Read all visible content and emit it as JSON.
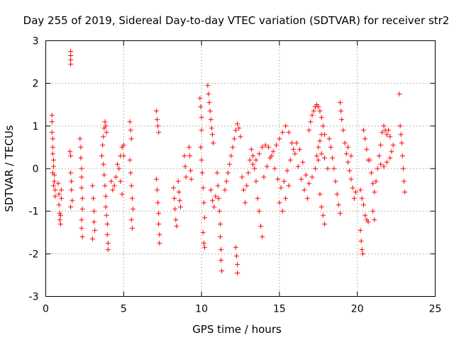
{
  "chart_data": {
    "type": "scatter",
    "title": "Day 255 of 2019, Sidereal Day-to-day VTEC variation (SDTVAR) for receiver str2",
    "xlabel": "GPS time / hours",
    "ylabel": "SDTVAR / TECUs",
    "xlim": [
      0,
      25
    ],
    "ylim": [
      -3,
      3
    ],
    "x_ticks": [
      "0",
      "5",
      "10",
      "15",
      "20",
      "25"
    ],
    "y_ticks": [
      "-3",
      "-2",
      "-1",
      "0",
      "1",
      "2",
      "3"
    ],
    "grid": true,
    "marker": "plus",
    "color": "#ff0000",
    "series": [
      {
        "name": "SDTVAR",
        "points": [
          [
            0.4,
            1.25
          ],
          [
            0.4,
            1.1
          ],
          [
            0.4,
            0.85
          ],
          [
            0.45,
            0.7
          ],
          [
            0.45,
            0.5
          ],
          [
            0.45,
            0.35
          ],
          [
            0.5,
            0.2
          ],
          [
            0.5,
            0.05
          ],
          [
            0.55,
            -0.15
          ],
          [
            0.55,
            -0.3
          ],
          [
            0.6,
            -0.5
          ],
          [
            0.6,
            -0.65
          ],
          [
            0.5,
            -0.4
          ],
          [
            0.45,
            -0.1
          ],
          [
            0.8,
            -0.35
          ],
          [
            0.85,
            -0.6
          ],
          [
            0.85,
            -0.85
          ],
          [
            0.9,
            -1.05
          ],
          [
            0.9,
            -1.2
          ],
          [
            0.95,
            -1.3
          ],
          [
            0.95,
            -1.1
          ],
          [
            1.0,
            -0.7
          ],
          [
            1.0,
            -0.5
          ],
          [
            1.6,
            2.75
          ],
          [
            1.6,
            2.65
          ],
          [
            1.6,
            2.55
          ],
          [
            1.6,
            2.45
          ],
          [
            1.55,
            0.4
          ],
          [
            1.6,
            0.3
          ],
          [
            1.6,
            -0.1
          ],
          [
            1.65,
            -0.3
          ],
          [
            1.65,
            -0.5
          ],
          [
            1.7,
            -0.75
          ],
          [
            1.6,
            -0.9
          ],
          [
            2.2,
            0.7
          ],
          [
            2.25,
            0.5
          ],
          [
            2.25,
            0.25
          ],
          [
            2.3,
            0.0
          ],
          [
            2.3,
            -0.2
          ],
          [
            2.3,
            -0.45
          ],
          [
            2.35,
            -0.7
          ],
          [
            2.35,
            -0.95
          ],
          [
            2.3,
            -1.2
          ],
          [
            2.3,
            -1.4
          ],
          [
            2.35,
            -1.6
          ],
          [
            3.0,
            -0.4
          ],
          [
            3.05,
            -0.7
          ],
          [
            3.1,
            -1.0
          ],
          [
            3.1,
            -1.25
          ],
          [
            3.15,
            -1.45
          ],
          [
            3.0,
            -1.65
          ],
          [
            3.6,
            0.3
          ],
          [
            3.65,
            0.55
          ],
          [
            3.7,
            0.75
          ],
          [
            3.75,
            0.95
          ],
          [
            3.8,
            1.1
          ],
          [
            3.85,
            1.0
          ],
          [
            3.9,
            0.85
          ],
          [
            3.7,
            0.1
          ],
          [
            3.75,
            -0.15
          ],
          [
            3.8,
            -0.4
          ],
          [
            3.85,
            -0.65
          ],
          [
            3.85,
            -0.9
          ],
          [
            3.9,
            -1.1
          ],
          [
            3.95,
            -1.3
          ],
          [
            3.95,
            -1.55
          ],
          [
            4.0,
            -1.75
          ],
          [
            4.0,
            -1.9
          ],
          [
            4.2,
            -0.3
          ],
          [
            4.3,
            -0.5
          ],
          [
            4.4,
            -0.4
          ],
          [
            4.5,
            -0.2
          ],
          [
            4.6,
            0.1
          ],
          [
            4.7,
            0.0
          ],
          [
            4.8,
            -0.3
          ],
          [
            4.9,
            -0.6
          ],
          [
            4.8,
            0.3
          ],
          [
            4.9,
            0.5
          ],
          [
            5.0,
            0.55
          ],
          [
            5.0,
            0.3
          ],
          [
            5.4,
            1.1
          ],
          [
            5.45,
            0.9
          ],
          [
            5.5,
            0.7
          ],
          [
            5.4,
            0.2
          ],
          [
            5.45,
            -0.1
          ],
          [
            5.5,
            -0.4
          ],
          [
            5.55,
            -0.7
          ],
          [
            5.6,
            -0.95
          ],
          [
            5.5,
            -1.2
          ],
          [
            5.55,
            -1.4
          ],
          [
            7.1,
            1.35
          ],
          [
            7.15,
            1.15
          ],
          [
            7.2,
            1.0
          ],
          [
            7.25,
            0.85
          ],
          [
            7.1,
            -0.25
          ],
          [
            7.15,
            -0.5
          ],
          [
            7.2,
            -0.8
          ],
          [
            7.25,
            -1.05
          ],
          [
            7.25,
            -1.3
          ],
          [
            7.3,
            -1.55
          ],
          [
            7.3,
            -1.75
          ],
          [
            8.2,
            -0.45
          ],
          [
            8.25,
            -0.7
          ],
          [
            8.3,
            -0.95
          ],
          [
            8.35,
            -1.2
          ],
          [
            8.4,
            -1.35
          ],
          [
            8.5,
            -0.3
          ],
          [
            8.55,
            -0.55
          ],
          [
            8.6,
            -0.75
          ],
          [
            8.65,
            -0.9
          ],
          [
            8.9,
            0.3
          ],
          [
            8.95,
            0.05
          ],
          [
            9.0,
            -0.2
          ],
          [
            9.2,
            0.5
          ],
          [
            9.25,
            0.3
          ],
          [
            9.3,
            -0.05
          ],
          [
            9.35,
            -0.25
          ],
          [
            9.9,
            1.65
          ],
          [
            9.95,
            1.45
          ],
          [
            10.0,
            1.2
          ],
          [
            10.0,
            0.9
          ],
          [
            9.95,
            0.5
          ],
          [
            10.0,
            0.2
          ],
          [
            10.05,
            -0.1
          ],
          [
            10.1,
            -0.45
          ],
          [
            10.15,
            -0.8
          ],
          [
            10.2,
            -1.15
          ],
          [
            10.1,
            -1.5
          ],
          [
            10.15,
            -1.75
          ],
          [
            10.2,
            -1.85
          ],
          [
            10.4,
            1.95
          ],
          [
            10.45,
            1.75
          ],
          [
            10.5,
            1.55
          ],
          [
            10.55,
            1.35
          ],
          [
            10.6,
            1.15
          ],
          [
            10.65,
            0.95
          ],
          [
            10.7,
            0.8
          ],
          [
            10.75,
            0.6
          ],
          [
            10.6,
            -0.5
          ],
          [
            10.7,
            -0.75
          ],
          [
            10.8,
            -0.9
          ],
          [
            10.9,
            -0.65
          ],
          [
            11.0,
            -0.1
          ],
          [
            11.05,
            -0.4
          ],
          [
            11.1,
            -0.7
          ],
          [
            11.15,
            -1.0
          ],
          [
            11.2,
            -1.3
          ],
          [
            11.2,
            -1.6
          ],
          [
            11.25,
            -1.9
          ],
          [
            11.25,
            -2.15
          ],
          [
            11.3,
            -2.4
          ],
          [
            11.5,
            -0.5
          ],
          [
            11.6,
            -0.3
          ],
          [
            11.7,
            -0.1
          ],
          [
            11.8,
            0.1
          ],
          [
            11.9,
            0.3
          ],
          [
            12.0,
            0.5
          ],
          [
            12.1,
            0.7
          ],
          [
            12.2,
            0.9
          ],
          [
            12.3,
            1.05
          ],
          [
            12.4,
            0.95
          ],
          [
            12.5,
            0.75
          ],
          [
            12.2,
            -1.85
          ],
          [
            12.25,
            -2.05
          ],
          [
            12.3,
            -2.25
          ],
          [
            12.3,
            -2.45
          ],
          [
            12.6,
            -0.2
          ],
          [
            12.7,
            -0.5
          ],
          [
            12.8,
            -0.8
          ],
          [
            12.9,
            -0.4
          ],
          [
            13.0,
            -0.1
          ],
          [
            13.1,
            0.2
          ],
          [
            13.2,
            0.45
          ],
          [
            13.3,
            0.3
          ],
          [
            13.4,
            0.0
          ],
          [
            13.5,
            -0.3
          ],
          [
            13.6,
            -0.7
          ],
          [
            13.7,
            -1.0
          ],
          [
            13.8,
            -1.35
          ],
          [
            13.9,
            -1.6
          ],
          [
            13.3,
            0.1
          ],
          [
            13.5,
            0.2
          ],
          [
            13.7,
            0.35
          ],
          [
            13.9,
            0.5
          ],
          [
            14.1,
            0.55
          ],
          [
            14.3,
            0.5
          ],
          [
            14.5,
            0.3
          ],
          [
            14.7,
            0.0
          ],
          [
            14.9,
            -0.25
          ],
          [
            15.1,
            -0.45
          ],
          [
            15.3,
            -0.3
          ],
          [
            15.5,
            -0.05
          ],
          [
            15.7,
            0.2
          ],
          [
            15.9,
            0.45
          ],
          [
            16.1,
            0.6
          ],
          [
            16.3,
            0.45
          ],
          [
            16.5,
            0.15
          ],
          [
            16.7,
            -0.15
          ],
          [
            16.9,
            -0.35
          ],
          [
            17.1,
            -0.2
          ],
          [
            17.3,
            0.0
          ],
          [
            17.5,
            0.2
          ],
          [
            17.7,
            0.35
          ],
          [
            17.9,
            0.25
          ],
          [
            18.1,
            0.0
          ],
          [
            14.0,
            -0.2
          ],
          [
            14.2,
            0.05
          ],
          [
            14.4,
            0.25
          ],
          [
            14.6,
            0.4
          ],
          [
            14.8,
            0.55
          ],
          [
            15.0,
            0.7
          ],
          [
            15.2,
            0.85
          ],
          [
            15.4,
            1.0
          ],
          [
            15.6,
            0.85
          ],
          [
            15.8,
            0.6
          ],
          [
            16.0,
            0.35
          ],
          [
            16.2,
            0.05
          ],
          [
            16.4,
            -0.25
          ],
          [
            16.6,
            -0.5
          ],
          [
            16.8,
            -0.7
          ],
          [
            15.0,
            -0.8
          ],
          [
            15.2,
            -1.0
          ],
          [
            15.4,
            -0.7
          ],
          [
            15.6,
            -0.4
          ],
          [
            16.9,
            0.9
          ],
          [
            17.0,
            1.1
          ],
          [
            17.1,
            1.25
          ],
          [
            17.2,
            1.35
          ],
          [
            17.3,
            1.45
          ],
          [
            17.4,
            1.5
          ],
          [
            17.5,
            1.45
          ],
          [
            17.6,
            1.35
          ],
          [
            17.7,
            1.2
          ],
          [
            17.8,
            1.0
          ],
          [
            17.9,
            0.8
          ],
          [
            17.4,
            0.3
          ],
          [
            17.5,
            0.5
          ],
          [
            17.6,
            0.65
          ],
          [
            17.7,
            0.8
          ],
          [
            17.6,
            -0.6
          ],
          [
            17.7,
            -0.9
          ],
          [
            17.8,
            -1.1
          ],
          [
            17.9,
            -1.3
          ],
          [
            18.2,
            0.7
          ],
          [
            18.3,
            0.5
          ],
          [
            18.4,
            0.25
          ],
          [
            18.5,
            0.0
          ],
          [
            18.6,
            -0.3
          ],
          [
            18.7,
            -0.6
          ],
          [
            18.8,
            -0.85
          ],
          [
            18.9,
            -1.05
          ],
          [
            18.9,
            1.55
          ],
          [
            18.95,
            1.35
          ],
          [
            19.0,
            1.15
          ],
          [
            19.1,
            0.9
          ],
          [
            19.2,
            0.6
          ],
          [
            19.3,
            0.35
          ],
          [
            19.4,
            0.15
          ],
          [
            19.5,
            -0.05
          ],
          [
            19.6,
            -0.25
          ],
          [
            19.7,
            -0.45
          ],
          [
            19.8,
            -0.7
          ],
          [
            19.9,
            -0.55
          ],
          [
            19.4,
            0.5
          ],
          [
            19.6,
            0.3
          ],
          [
            20.2,
            -0.5
          ],
          [
            20.3,
            -0.7
          ],
          [
            20.4,
            -0.85
          ],
          [
            20.5,
            -1.1
          ],
          [
            20.6,
            -1.2
          ],
          [
            20.7,
            -1.25
          ],
          [
            20.2,
            -1.45
          ],
          [
            20.25,
            -1.7
          ],
          [
            20.3,
            -1.9
          ],
          [
            20.35,
            -2.0
          ],
          [
            20.8,
            0.2
          ],
          [
            20.9,
            -0.1
          ],
          [
            21.0,
            -0.35
          ],
          [
            21.1,
            -0.55
          ],
          [
            21.2,
            -0.3
          ],
          [
            21.3,
            0.0
          ],
          [
            21.4,
            0.3
          ],
          [
            21.5,
            0.55
          ],
          [
            21.6,
            0.85
          ],
          [
            21.7,
            1.0
          ],
          [
            21.8,
            0.9
          ],
          [
            21.9,
            0.8
          ],
          [
            22.0,
            0.9
          ],
          [
            22.1,
            0.75
          ],
          [
            21.5,
            0.1
          ],
          [
            21.7,
            0.05
          ],
          [
            21.9,
            0.15
          ],
          [
            22.1,
            0.25
          ],
          [
            22.2,
            0.4
          ],
          [
            22.3,
            0.55
          ],
          [
            20.4,
            0.9
          ],
          [
            20.5,
            0.7
          ],
          [
            20.6,
            0.45
          ],
          [
            20.7,
            0.2
          ],
          [
            21.0,
            -1.0
          ],
          [
            21.1,
            -1.2
          ],
          [
            22.7,
            1.75
          ],
          [
            22.75,
            1.0
          ],
          [
            22.8,
            0.8
          ],
          [
            22.85,
            0.6
          ],
          [
            22.9,
            0.3
          ],
          [
            22.95,
            0.0
          ],
          [
            23.0,
            -0.3
          ],
          [
            23.05,
            -0.55
          ]
        ]
      }
    ]
  }
}
